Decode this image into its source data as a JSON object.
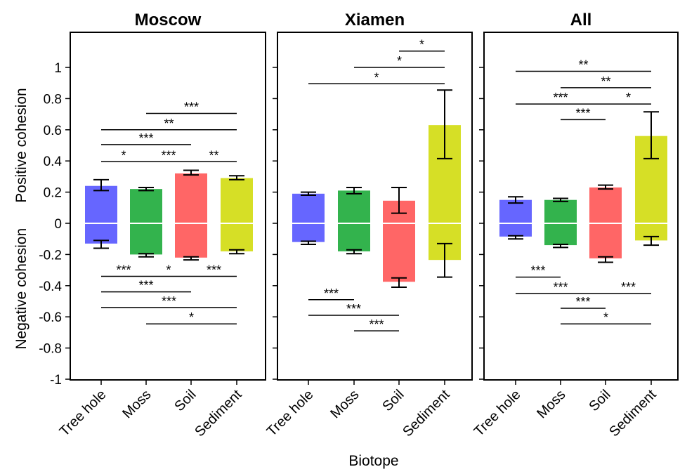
{
  "chart_data": {
    "type": "box",
    "x_axis_title": "Biotope",
    "y_axis_title_top": "Positive cohesion",
    "y_axis_title_bottom": "Negative cohesion",
    "y_ticks": [
      "1",
      "0.8",
      "0.6",
      "0.4",
      "0.2",
      "0",
      "-0.2",
      "-0.4",
      "-0.6",
      "-0.8",
      "-1"
    ],
    "y_tick_values": [
      1,
      0.8,
      0.6,
      0.4,
      0.2,
      0,
      -0.2,
      -0.4,
      -0.6,
      -0.8,
      -1
    ],
    "ylim": [
      -1,
      1.2
    ],
    "categories": [
      "Tree hole",
      "Moss",
      "Soil",
      "Sediment"
    ],
    "colors": {
      "Tree hole": "#6666ff",
      "Moss": "#33b34d",
      "Soil": "#ff6666",
      "Sediment": "#d6df26"
    },
    "panels": [
      {
        "title": "Moscow",
        "boxes": [
          {
            "category": "Tree hole",
            "top": 0.24,
            "bottom": -0.13,
            "median": 0,
            "pos_err": [
              0.21,
              0.28
            ],
            "neg_err": [
              -0.16,
              -0.11
            ]
          },
          {
            "category": "Moss",
            "top": 0.22,
            "bottom": -0.2,
            "median": 0,
            "pos_err": [
              0.21,
              0.23
            ],
            "neg_err": [
              -0.215,
              -0.195
            ]
          },
          {
            "category": "Soil",
            "top": 0.32,
            "bottom": -0.22,
            "median": 0,
            "pos_err": [
              0.31,
              0.34
            ],
            "neg_err": [
              -0.235,
              -0.215
            ]
          },
          {
            "category": "Sediment",
            "top": 0.29,
            "bottom": -0.18,
            "median": 0,
            "pos_err": [
              0.28,
              0.305
            ],
            "neg_err": [
              -0.195,
              -0.17
            ]
          }
        ],
        "sig_top": [
          {
            "from": "Moss",
            "to": "Sediment",
            "y": 0.705,
            "label": "***"
          },
          {
            "from": "Tree hole",
            "to": "Sediment",
            "y": 0.6,
            "label": "**"
          },
          {
            "from": "Tree hole",
            "to": "Soil",
            "y": 0.505,
            "label": "***"
          },
          {
            "from": "Tree hole",
            "to": "Moss",
            "y": 0.395,
            "label": "*"
          },
          {
            "from": "Moss",
            "to": "Soil",
            "y": 0.395,
            "label": "***"
          },
          {
            "from": "Soil",
            "to": "Sediment",
            "y": 0.395,
            "label": "**"
          }
        ],
        "sig_bottom": [
          {
            "from": "Tree hole",
            "to": "Moss",
            "y": -0.34,
            "label": "***"
          },
          {
            "from": "Moss",
            "to": "Soil",
            "y": -0.34,
            "label": "*"
          },
          {
            "from": "Soil",
            "to": "Sediment",
            "y": -0.34,
            "label": "***"
          },
          {
            "from": "Tree hole",
            "to": "Soil",
            "y": -0.44,
            "label": "***"
          },
          {
            "from": "Tree hole",
            "to": "Sediment",
            "y": -0.54,
            "label": "***"
          },
          {
            "from": "Moss",
            "to": "Sediment",
            "y": -0.645,
            "label": "*"
          }
        ]
      },
      {
        "title": "Xiamen",
        "boxes": [
          {
            "category": "Tree hole",
            "top": 0.19,
            "bottom": -0.12,
            "median": 0,
            "pos_err": [
              0.18,
              0.2
            ],
            "neg_err": [
              -0.135,
              -0.115
            ]
          },
          {
            "category": "Moss",
            "top": 0.21,
            "bottom": -0.18,
            "median": 0,
            "pos_err": [
              0.19,
              0.23
            ],
            "neg_err": [
              -0.195,
              -0.17
            ]
          },
          {
            "category": "Soil",
            "top": 0.145,
            "bottom": -0.375,
            "median": 0,
            "pos_err": [
              0.065,
              0.23
            ],
            "neg_err": [
              -0.41,
              -0.35
            ]
          },
          {
            "category": "Sediment",
            "top": 0.63,
            "bottom": -0.235,
            "median": 0,
            "pos_err": [
              0.415,
              0.855
            ],
            "neg_err": [
              -0.345,
              -0.13
            ]
          }
        ],
        "sig_top": [
          {
            "from": "Soil",
            "to": "Sediment",
            "y": 1.105,
            "label": "*"
          },
          {
            "from": "Moss",
            "to": "Sediment",
            "y": 1.0,
            "label": "*"
          },
          {
            "from": "Tree hole",
            "to": "Sediment",
            "y": 0.895,
            "label": "*"
          }
        ],
        "sig_bottom": [
          {
            "from": "Tree hole",
            "to": "Moss",
            "y": -0.49,
            "label": "***"
          },
          {
            "from": "Tree hole",
            "to": "Soil",
            "y": -0.59,
            "label": "***"
          },
          {
            "from": "Moss",
            "to": "Soil",
            "y": -0.69,
            "label": "***"
          }
        ]
      },
      {
        "title": "All",
        "boxes": [
          {
            "category": "Tree hole",
            "top": 0.15,
            "bottom": -0.085,
            "median": 0,
            "pos_err": [
              0.13,
              0.17
            ],
            "neg_err": [
              -0.1,
              -0.08
            ]
          },
          {
            "category": "Moss",
            "top": 0.15,
            "bottom": -0.14,
            "median": 0,
            "pos_err": [
              0.14,
              0.16
            ],
            "neg_err": [
              -0.155,
              -0.135
            ]
          },
          {
            "category": "Soil",
            "top": 0.23,
            "bottom": -0.225,
            "median": 0,
            "pos_err": [
              0.22,
              0.245
            ],
            "neg_err": [
              -0.25,
              -0.215
            ]
          },
          {
            "category": "Sediment",
            "top": 0.56,
            "bottom": -0.11,
            "median": 0,
            "pos_err": [
              0.415,
              0.715
            ],
            "neg_err": [
              -0.14,
              -0.085
            ]
          }
        ],
        "sig_top": [
          {
            "from": "Tree hole",
            "to": "Sediment",
            "y": 0.975,
            "label": "**"
          },
          {
            "from": "Moss",
            "to": "Sediment",
            "y": 0.87,
            "label": "**"
          },
          {
            "from": "Tree hole",
            "to": "Soil",
            "y": 0.765,
            "label": "***"
          },
          {
            "from": "Soil",
            "to": "Sediment",
            "y": 0.765,
            "label": "*"
          },
          {
            "from": "Moss",
            "to": "Soil",
            "y": 0.665,
            "label": "***"
          }
        ],
        "sig_bottom": [
          {
            "from": "Tree hole",
            "to": "Moss",
            "y": -0.345,
            "label": "***"
          },
          {
            "from": "Tree hole",
            "to": "Soil",
            "y": -0.45,
            "label": "***"
          },
          {
            "from": "Soil",
            "to": "Sediment",
            "y": -0.45,
            "label": "***"
          },
          {
            "from": "Moss",
            "to": "Soil",
            "y": -0.545,
            "label": "***"
          },
          {
            "from": "Moss",
            "to": "Sediment",
            "y": -0.645,
            "label": "*"
          }
        ]
      }
    ]
  }
}
